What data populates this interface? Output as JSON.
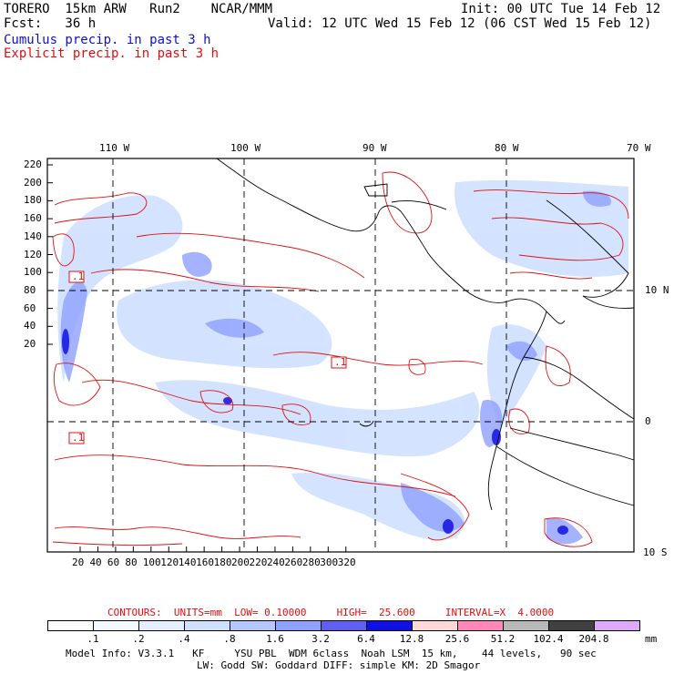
{
  "header": {
    "model": "TORERO  15km ARW   Run2    NCAR/MMM",
    "init": "Init: 00 UTC Tue 14 Feb 12",
    "fcst": "Fcst:   36 h",
    "valid": "Valid: 12 UTC Wed 15 Feb 12 (06 CST Wed 15 Feb 12)",
    "field1": "Cumulus precip. in past 3 h",
    "field2": "Explicit precip. in past 3 h",
    "field1_color": "#1010c8",
    "field2_color": "#e01010"
  },
  "map": {
    "lon_labels": [
      "110 W",
      "100 W",
      "90 W",
      "80 W",
      "70 W"
    ],
    "lat_labels": [
      "10 N",
      "0",
      "10 S"
    ],
    "y_ticks": [
      "220",
      "200",
      "180",
      "160",
      "140",
      "120",
      "100",
      "80",
      "60",
      "40",
      "20"
    ],
    "x_ticks": [
      "20",
      "40",
      "60",
      "80",
      "100",
      "120",
      "140",
      "160",
      "180",
      "200",
      "220",
      "240",
      "260",
      "280",
      "300",
      "320"
    ],
    "markers": [
      ".1",
      ".1",
      ".1"
    ]
  },
  "footer": {
    "contours": "CONTOURS:  UNITS=mm  LOW= 0.10000     HIGH=  25.600     INTERVAL=X  4.0000",
    "units": "mm",
    "model_info": "Model Info: V3.3.1   KF     YSU PBL  WDM 6class  Noah LSM  15 km,    44 levels,   90 sec",
    "model_info2": "LW: Godd SW: Goddard DIFF: simple KM: 2D Smagor"
  },
  "colorbar": {
    "labels": [
      ".1",
      ".2",
      ".4",
      ".8",
      "1.6",
      "3.2",
      "6.4",
      "12.8",
      "25.6",
      "51.2",
      "102.4",
      "204.8"
    ],
    "colors": [
      "#ffffff",
      "#f4f8ff",
      "#e4eeff",
      "#cfe0ff",
      "#b4c8ff",
      "#8fa0ff",
      "#6060f0",
      "#1010e0",
      "#ffd8d8",
      "#ff88b8",
      "#b8b8b8",
      "#404040",
      "#dcaaf8"
    ]
  }
}
